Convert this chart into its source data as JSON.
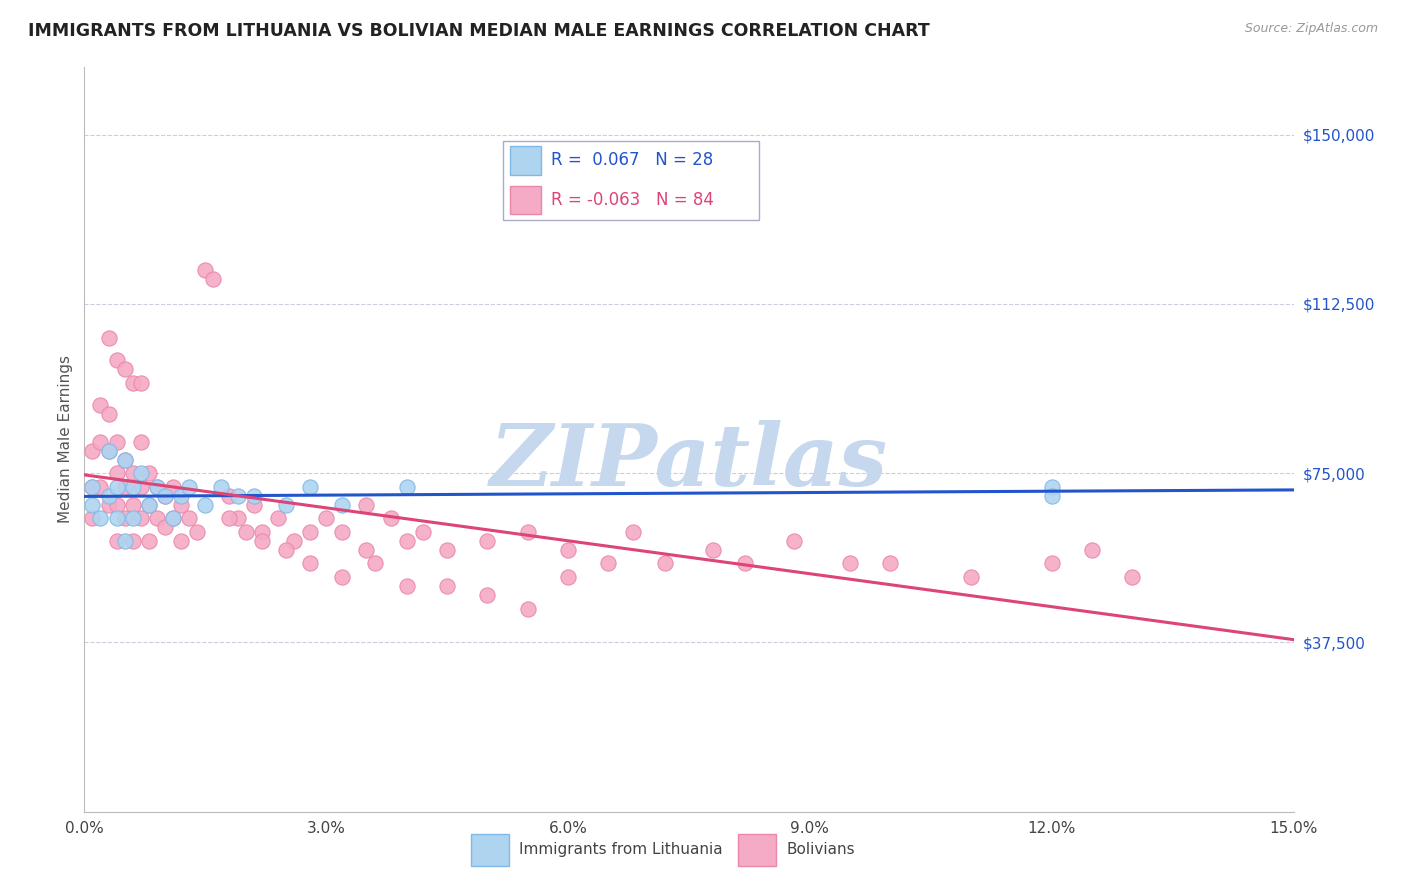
{
  "title": "IMMIGRANTS FROM LITHUANIA VS BOLIVIAN MEDIAN MALE EARNINGS CORRELATION CHART",
  "source": "Source: ZipAtlas.com",
  "ylabel": "Median Male Earnings",
  "xlim": [
    0.0,
    0.15
  ],
  "ylim": [
    0,
    165000
  ],
  "yticks": [
    0,
    37500,
    75000,
    112500,
    150000
  ],
  "ytick_labels": [
    "",
    "$37,500",
    "$75,000",
    "$112,500",
    "$150,000"
  ],
  "xtick_labels": [
    "0.0%",
    "",
    "3.0%",
    "",
    "6.0%",
    "",
    "9.0%",
    "",
    "12.0%",
    "",
    "15.0%"
  ],
  "xticks": [
    0.0,
    0.015,
    0.03,
    0.045,
    0.06,
    0.075,
    0.09,
    0.105,
    0.12,
    0.135,
    0.15
  ],
  "legend_labels": [
    "Immigrants from Lithuania",
    "Bolivians"
  ],
  "blue_R": "0.067",
  "blue_N": "28",
  "pink_R": "-0.063",
  "pink_N": "84",
  "blue_color": "#aed4f0",
  "pink_color": "#f5aac5",
  "blue_edge": "#80b8e8",
  "pink_edge": "#e888aa",
  "blue_line_color": "#2255cc",
  "pink_line_color": "#dd4477",
  "watermark": "ZIPatlas",
  "watermark_color": "#c5d8ee",
  "bg_color": "#ffffff",
  "grid_color": "#ccccdd",
  "point_size": 120,
  "blue_points_x": [
    0.001,
    0.001,
    0.002,
    0.003,
    0.003,
    0.004,
    0.004,
    0.005,
    0.005,
    0.006,
    0.006,
    0.007,
    0.008,
    0.009,
    0.01,
    0.011,
    0.012,
    0.013,
    0.015,
    0.017,
    0.019,
    0.021,
    0.025,
    0.028,
    0.032,
    0.04,
    0.12,
    0.12
  ],
  "blue_points_y": [
    72000,
    68000,
    65000,
    80000,
    70000,
    72000,
    65000,
    78000,
    60000,
    72000,
    65000,
    75000,
    68000,
    72000,
    70000,
    65000,
    70000,
    72000,
    68000,
    72000,
    70000,
    70000,
    68000,
    72000,
    68000,
    72000,
    72000,
    70000
  ],
  "pink_points_x": [
    0.001,
    0.001,
    0.001,
    0.002,
    0.002,
    0.002,
    0.003,
    0.003,
    0.003,
    0.004,
    0.004,
    0.004,
    0.004,
    0.005,
    0.005,
    0.005,
    0.006,
    0.006,
    0.006,
    0.007,
    0.007,
    0.007,
    0.008,
    0.008,
    0.008,
    0.009,
    0.009,
    0.01,
    0.01,
    0.011,
    0.011,
    0.012,
    0.012,
    0.013,
    0.014,
    0.015,
    0.016,
    0.018,
    0.019,
    0.021,
    0.022,
    0.024,
    0.026,
    0.028,
    0.03,
    0.032,
    0.035,
    0.035,
    0.038,
    0.04,
    0.042,
    0.045,
    0.05,
    0.055,
    0.06,
    0.065,
    0.068,
    0.072,
    0.078,
    0.082,
    0.088,
    0.095,
    0.1,
    0.11,
    0.12,
    0.125,
    0.13,
    0.003,
    0.004,
    0.005,
    0.006,
    0.007,
    0.018,
    0.02,
    0.022,
    0.025,
    0.028,
    0.032,
    0.036,
    0.04,
    0.045,
    0.05,
    0.055,
    0.06
  ],
  "pink_points_y": [
    80000,
    72000,
    65000,
    90000,
    82000,
    72000,
    88000,
    80000,
    68000,
    82000,
    75000,
    68000,
    60000,
    78000,
    72000,
    65000,
    75000,
    68000,
    60000,
    82000,
    72000,
    65000,
    75000,
    68000,
    60000,
    72000,
    65000,
    70000,
    63000,
    72000,
    65000,
    68000,
    60000,
    65000,
    62000,
    120000,
    118000,
    70000,
    65000,
    68000,
    62000,
    65000,
    60000,
    62000,
    65000,
    62000,
    68000,
    58000,
    65000,
    60000,
    62000,
    58000,
    60000,
    62000,
    58000,
    55000,
    62000,
    55000,
    58000,
    55000,
    60000,
    55000,
    55000,
    52000,
    55000,
    58000,
    52000,
    105000,
    100000,
    98000,
    95000,
    95000,
    65000,
    62000,
    60000,
    58000,
    55000,
    52000,
    55000,
    50000,
    50000,
    48000,
    45000,
    52000
  ]
}
